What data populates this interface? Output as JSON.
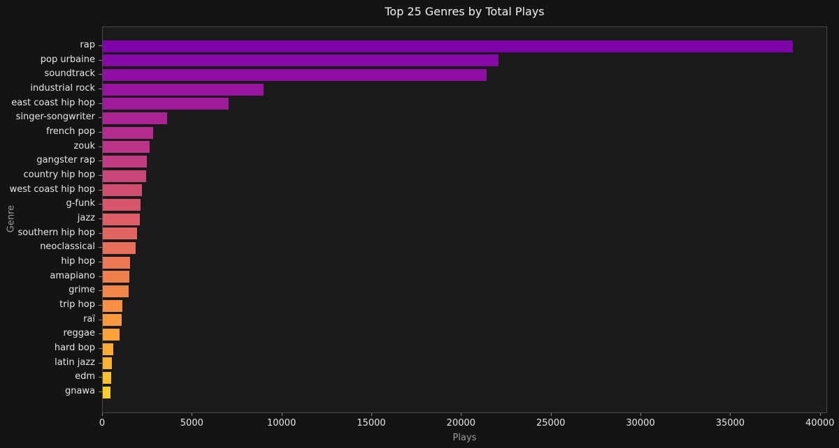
{
  "theme": {
    "figure_bg": "#141414",
    "axes_bg": "#1a1a1a",
    "spine_color": "#4a4a4a",
    "tick_label_color": "#e6e6e6",
    "axis_label_color": "#9c9c9c",
    "title_color": "#f2f2f2",
    "tick_mark_color": "#8a8a8a"
  },
  "chart_data": {
    "type": "bar",
    "orientation": "horizontal",
    "title": "Top 25 Genres by Total Plays",
    "xlabel": "Plays",
    "ylabel": "Genre",
    "xlim": [
      0,
      40400
    ],
    "xticks": [
      0,
      5000,
      10000,
      15000,
      20000,
      25000,
      30000,
      35000,
      40000
    ],
    "grid": false,
    "legend": null,
    "categories": [
      "rap",
      "pop urbaine",
      "soundtrack",
      "industrial rock",
      "east coast hip hop",
      "singer-songwriter",
      "french pop",
      "zouk",
      "gangster rap",
      "country hip hop",
      "west coast hip hop",
      "g-funk",
      "jazz",
      "southern hip hop",
      "neoclassical",
      "hip hop",
      "amapiano",
      "grime",
      "trip hop",
      "raï",
      "reggae",
      "hard bop",
      "latin jazz",
      "edm",
      "gnawa"
    ],
    "values": [
      38450,
      22050,
      21400,
      8950,
      7000,
      3600,
      2800,
      2600,
      2450,
      2400,
      2180,
      2100,
      2060,
      1900,
      1830,
      1520,
      1480,
      1440,
      1090,
      1070,
      930,
      580,
      510,
      470,
      440
    ],
    "bar_colors": [
      "#7e03a8",
      "#870aa6",
      "#900ea3",
      "#9713a0",
      "#a01a9c",
      "#ab2494",
      "#b42d8e",
      "#bb3488",
      "#c23c81",
      "#ca457a",
      "#d14e73",
      "#d7566c",
      "#dd5e67",
      "#e16561",
      "#e76e5a",
      "#ec7854",
      "#f07f4e",
      "#f38749",
      "#f79044",
      "#f9993e",
      "#fba338",
      "#fcab33",
      "#fdb330",
      "#fdc02a",
      "#fcce25"
    ]
  }
}
